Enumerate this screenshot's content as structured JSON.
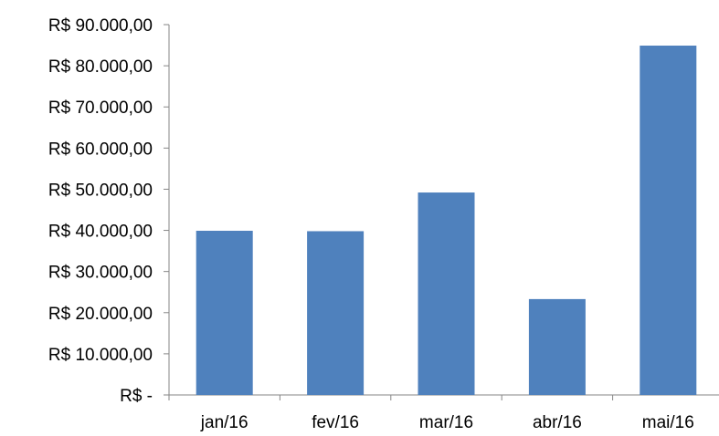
{
  "chart_data": {
    "type": "bar",
    "categories": [
      "jan/16",
      "fev/16",
      "mar/16",
      "abr/16",
      "mai/16"
    ],
    "values": [
      39900,
      39800,
      49200,
      23300,
      84900
    ],
    "ylim": [
      0,
      90000
    ],
    "yticks": [
      0,
      10000,
      20000,
      30000,
      40000,
      50000,
      60000,
      70000,
      80000,
      90000
    ],
    "ytick_labels": [
      "R$ -",
      "R$ 10.000,00",
      "R$ 20.000,00",
      "R$ 30.000,00",
      "R$ 40.000,00",
      "R$ 50.000,00",
      "R$ 60.000,00",
      "R$ 70.000,00",
      "R$ 80.000,00",
      "R$ 90.000,00"
    ],
    "grid": false,
    "legend": "none",
    "bar_color": "#4F81BD"
  }
}
